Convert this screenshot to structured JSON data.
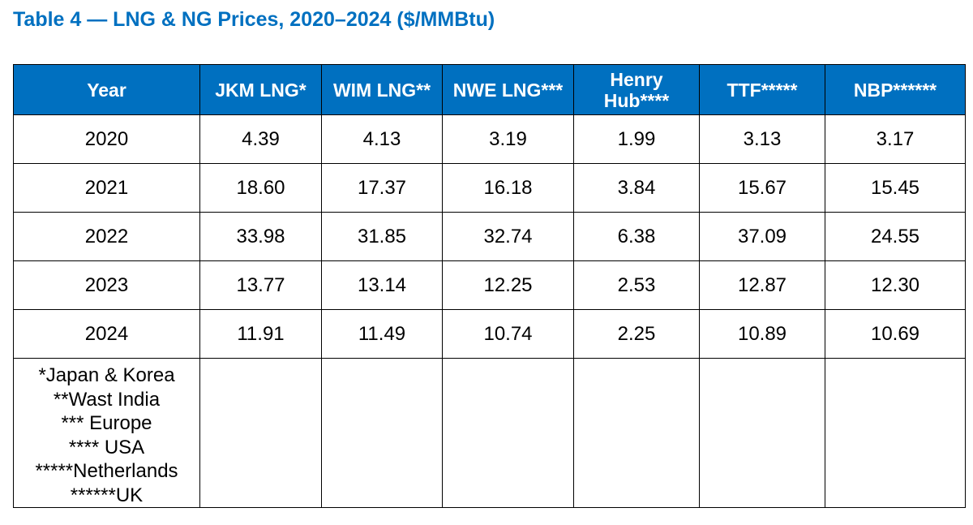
{
  "title": "Table 4 — LNG & NG Prices, 2020–2024 ($/MMBtu)",
  "table": {
    "headers": [
      "Year",
      "JKM LNG*",
      "WIM LNG**",
      "NWE LNG***",
      "Henry Hub****",
      "TTF*****",
      "NBP******"
    ],
    "rows": [
      [
        "2020",
        "4.39",
        "4.13",
        "3.19",
        "1.99",
        "3.13",
        "3.17"
      ],
      [
        "2021",
        "18.60",
        "17.37",
        "16.18",
        "3.84",
        "15.67",
        "15.45"
      ],
      [
        "2022",
        "33.98",
        "31.85",
        "32.74",
        "6.38",
        "37.09",
        "24.55"
      ],
      [
        "2023",
        "13.77",
        "13.14",
        "12.25",
        "2.53",
        "12.87",
        "12.30"
      ],
      [
        "2024",
        "11.91",
        "11.49",
        "10.74",
        "2.25",
        "10.89",
        "10.69"
      ]
    ],
    "footnotes": [
      "*Japan & Korea",
      "**Wast India",
      "*** Europe",
      "**** USA",
      "*****Netherlands",
      "******UK"
    ]
  },
  "colors": {
    "accent": "#0070C0",
    "header_text": "#ffffff",
    "border": "#000000"
  }
}
